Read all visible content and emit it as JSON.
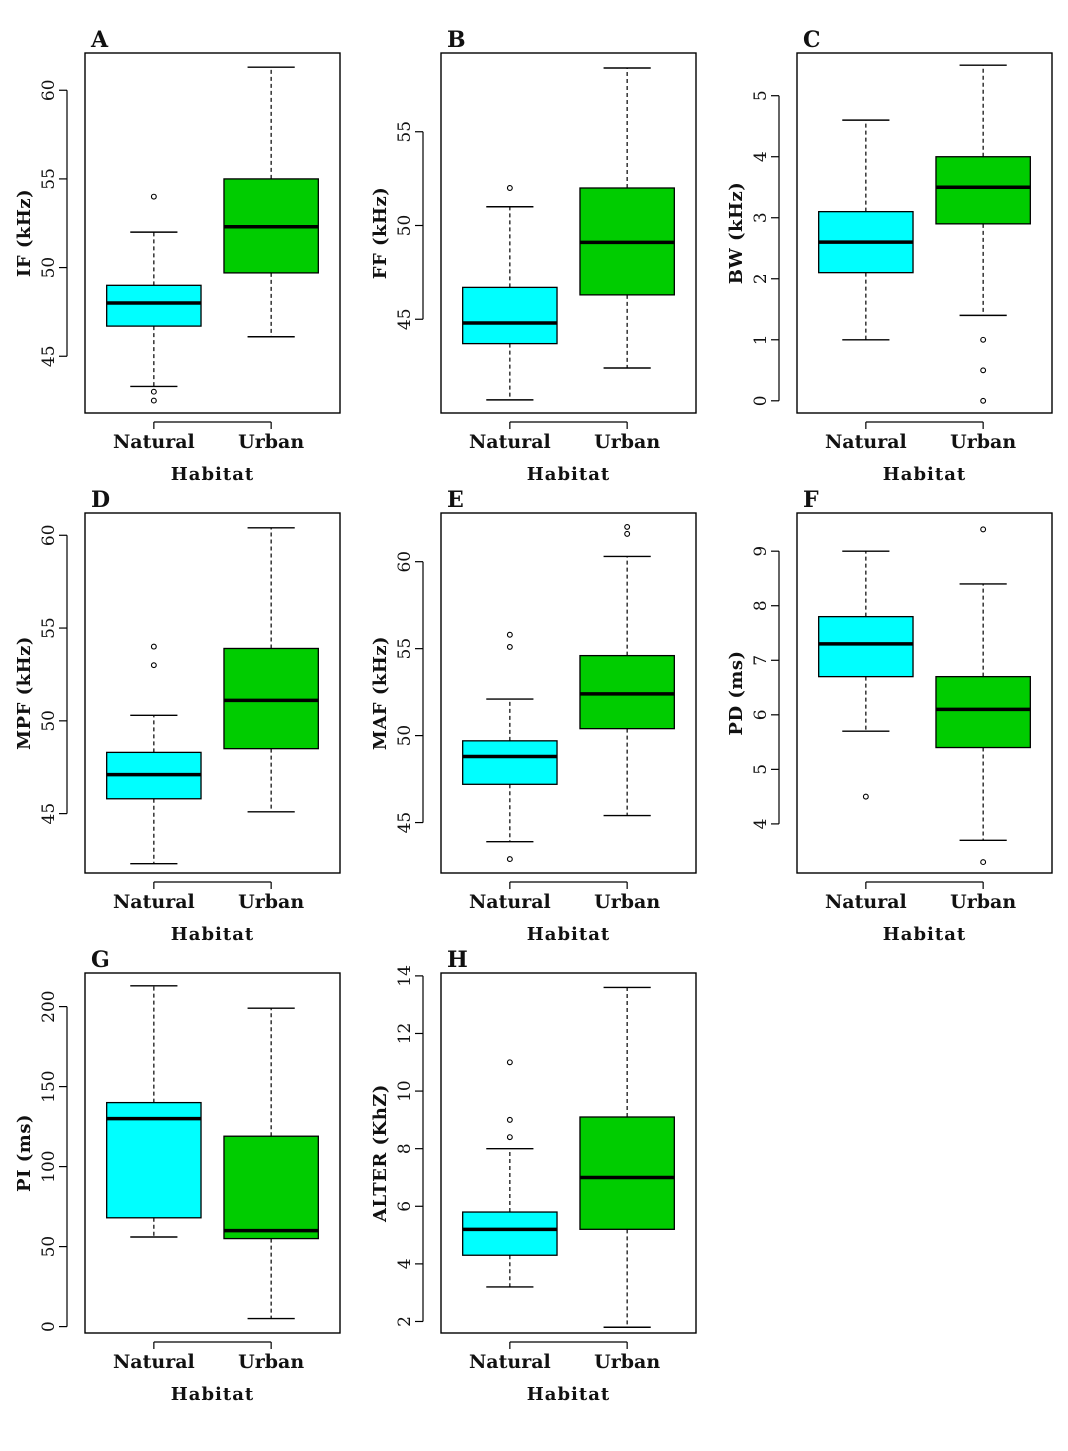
{
  "colors": {
    "natural": "#00FFFF",
    "urban": "#00CC00",
    "ink": "#000000"
  },
  "chart_data": [
    {
      "type": "box",
      "panel": "A",
      "xlabel": "Habitat",
      "ylabel": "IF (kHz)",
      "categories": [
        "Natural",
        "Urban"
      ],
      "ylim": [
        41.8,
        62.1
      ],
      "yticks": [
        45,
        50,
        55,
        60
      ],
      "boxes": [
        {
          "lw": 43.3,
          "q1": 46.7,
          "median": 48.0,
          "q3": 49.0,
          "uw": 52.0,
          "outliers": [
            54.0,
            43.0,
            42.5
          ]
        },
        {
          "lw": 46.1,
          "q1": 49.7,
          "median": 52.3,
          "q3": 55.0,
          "uw": 61.3,
          "outliers": []
        }
      ]
    },
    {
      "type": "box",
      "panel": "B",
      "xlabel": "Habitat",
      "ylabel": "FF (kHz)",
      "categories": [
        "Natural",
        "Urban"
      ],
      "ylim": [
        40.0,
        59.2
      ],
      "yticks": [
        45,
        50,
        55
      ],
      "boxes": [
        {
          "lw": 40.7,
          "q1": 43.7,
          "median": 44.8,
          "q3": 46.7,
          "uw": 51.0,
          "outliers": [
            52.0
          ]
        },
        {
          "lw": 42.4,
          "q1": 46.3,
          "median": 49.1,
          "q3": 52.0,
          "uw": 58.4,
          "outliers": []
        }
      ]
    },
    {
      "type": "box",
      "panel": "C",
      "xlabel": "Habitat",
      "ylabel": "BW (kHz)",
      "categories": [
        "Natural",
        "Urban"
      ],
      "ylim": [
        -0.2,
        5.7
      ],
      "yticks": [
        0,
        1,
        2,
        3,
        4,
        5
      ],
      "boxes": [
        {
          "lw": 1.0,
          "q1": 2.1,
          "median": 2.6,
          "q3": 3.1,
          "uw": 4.6,
          "outliers": []
        },
        {
          "lw": 1.4,
          "q1": 2.9,
          "median": 3.5,
          "q3": 4.0,
          "uw": 5.5,
          "outliers": [
            1.0,
            0.5,
            0.0
          ]
        }
      ]
    },
    {
      "type": "box",
      "panel": "D",
      "xlabel": "Habitat",
      "ylabel": "MPF (kHz)",
      "categories": [
        "Natural",
        "Urban"
      ],
      "ylim": [
        41.8,
        61.2
      ],
      "yticks": [
        45,
        50,
        55,
        60
      ],
      "boxes": [
        {
          "lw": 42.3,
          "q1": 45.8,
          "median": 47.1,
          "q3": 48.3,
          "uw": 50.3,
          "outliers": [
            54.0,
            53.0
          ]
        },
        {
          "lw": 45.1,
          "q1": 48.5,
          "median": 51.1,
          "q3": 53.9,
          "uw": 60.4,
          "outliers": []
        }
      ]
    },
    {
      "type": "box",
      "panel": "E",
      "xlabel": "Habitat",
      "ylabel": "MAF (kHz)",
      "categories": [
        "Natural",
        "Urban"
      ],
      "ylim": [
        42.1,
        62.8
      ],
      "yticks": [
        45,
        50,
        55,
        60
      ],
      "boxes": [
        {
          "lw": 43.9,
          "q1": 47.2,
          "median": 48.8,
          "q3": 49.7,
          "uw": 52.1,
          "outliers": [
            55.8,
            55.1,
            42.9
          ]
        },
        {
          "lw": 45.4,
          "q1": 50.4,
          "median": 52.4,
          "q3": 54.6,
          "uw": 60.3,
          "outliers": [
            62.0,
            61.6
          ]
        }
      ]
    },
    {
      "type": "box",
      "panel": "F",
      "xlabel": "Habitat",
      "ylabel": "PD (ms)",
      "categories": [
        "Natural",
        "Urban"
      ],
      "ylim": [
        3.1,
        9.7
      ],
      "yticks": [
        4,
        5,
        6,
        7,
        8,
        9
      ],
      "boxes": [
        {
          "lw": 5.7,
          "q1": 6.7,
          "median": 7.3,
          "q3": 7.8,
          "uw": 9.0,
          "outliers": [
            4.5
          ]
        },
        {
          "lw": 3.7,
          "q1": 5.4,
          "median": 6.1,
          "q3": 6.7,
          "uw": 8.4,
          "outliers": [
            9.4,
            3.3
          ]
        }
      ]
    },
    {
      "type": "box",
      "panel": "G",
      "xlabel": "Habitat",
      "ylabel": "PI (ms)",
      "categories": [
        "Natural",
        "Urban"
      ],
      "ylim": [
        -4,
        221
      ],
      "yticks": [
        0,
        50,
        100,
        150,
        200
      ],
      "boxes": [
        {
          "lw": 56,
          "q1": 68,
          "median": 130,
          "q3": 140,
          "uw": 213,
          "outliers": []
        },
        {
          "lw": 5,
          "q1": 55,
          "median": 60,
          "q3": 119,
          "uw": 199,
          "outliers": []
        }
      ]
    },
    {
      "type": "box",
      "panel": "H",
      "xlabel": "Habitat",
      "ylabel": "ALTER (KhZ)",
      "categories": [
        "Natural",
        "Urban"
      ],
      "ylim": [
        1.6,
        14.1
      ],
      "yticks": [
        2,
        4,
        6,
        8,
        10,
        12,
        14
      ],
      "boxes": [
        {
          "lw": 3.2,
          "q1": 4.3,
          "median": 5.2,
          "q3": 5.8,
          "uw": 8.0,
          "outliers": [
            11.0,
            9.0,
            8.4
          ]
        },
        {
          "lw": 1.8,
          "q1": 5.2,
          "median": 7.0,
          "q3": 9.1,
          "uw": 13.6,
          "outliers": []
        }
      ]
    }
  ]
}
